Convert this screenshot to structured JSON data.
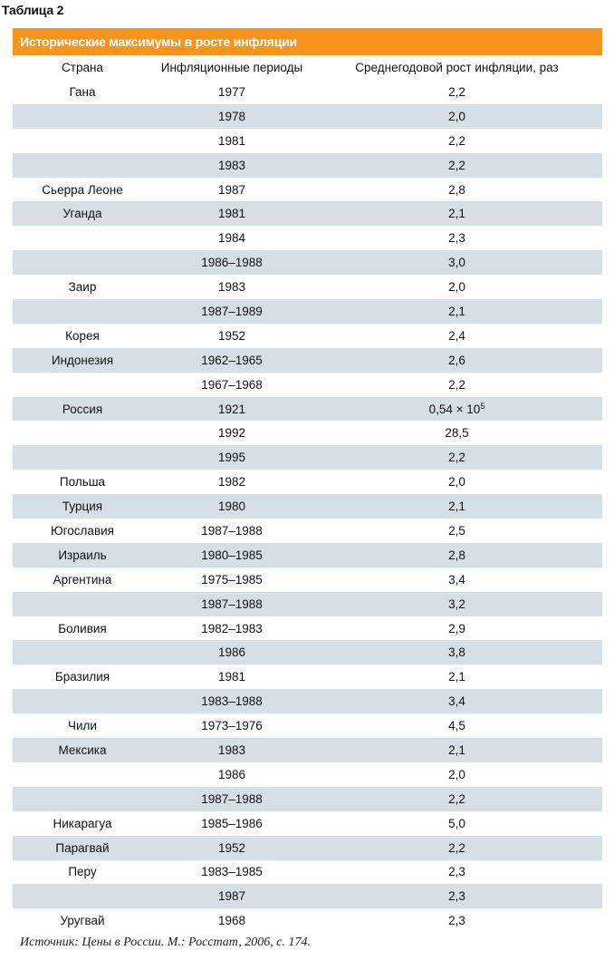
{
  "table_label": "Таблица 2",
  "title": "Исторические максимумы в росте инфляции",
  "headers": [
    "Страна",
    "Инфляционные периоды",
    "Среднегодовой рост инфляции, раз"
  ],
  "rows": [
    {
      "country": "Гана",
      "period": "1977",
      "value": "2,2"
    },
    {
      "country": "",
      "period": "1978",
      "value": "2,0"
    },
    {
      "country": "",
      "period": "1981",
      "value": "2,2"
    },
    {
      "country": "",
      "period": "1983",
      "value": "2,2"
    },
    {
      "country": "Сьерра Леоне",
      "period": "1987",
      "value": "2,8"
    },
    {
      "country": "Уганда",
      "period": "1981",
      "value": "2,1"
    },
    {
      "country": "",
      "period": "1984",
      "value": "2,3"
    },
    {
      "country": "",
      "period": "1986–1988",
      "value": "3,0"
    },
    {
      "country": "Заир",
      "period": "1983",
      "value": "2,0"
    },
    {
      "country": "",
      "period": "1987–1989",
      "value": "2,1"
    },
    {
      "country": "Корея",
      "period": "1952",
      "value": "2,4"
    },
    {
      "country": "Индонезия",
      "period": "1962–1965",
      "value": "2,6"
    },
    {
      "country": "",
      "period": "1967–1968",
      "value": "2,2"
    },
    {
      "country": "Россия",
      "period": "1921",
      "value": "0,54 × 10",
      "sup": "5"
    },
    {
      "country": "",
      "period": "1992",
      "value": "28,5"
    },
    {
      "country": "",
      "period": "1995",
      "value": "2,2"
    },
    {
      "country": "Польша",
      "period": "1982",
      "value": "2,0"
    },
    {
      "country": "Турция",
      "period": "1980",
      "value": "2,1"
    },
    {
      "country": "Югославия",
      "period": "1987–1988",
      "value": "2,5"
    },
    {
      "country": "Израиль",
      "period": "1980–1985",
      "value": "2,8"
    },
    {
      "country": "Аргентина",
      "period": "1975–1985",
      "value": "3,4"
    },
    {
      "country": "",
      "period": "1987–1988",
      "value": "3,2"
    },
    {
      "country": "Боливия",
      "period": "1982–1983",
      "value": "2,9"
    },
    {
      "country": "",
      "period": "1986",
      "value": "3,8"
    },
    {
      "country": "Бразилия",
      "period": "1981",
      "value": "2,1"
    },
    {
      "country": "",
      "period": "1983–1988",
      "value": "3,4"
    },
    {
      "country": "Чили",
      "period": "1973–1976",
      "value": "4,5"
    },
    {
      "country": "Мексика",
      "period": "1983",
      "value": "2,1"
    },
    {
      "country": "",
      "period": "1986",
      "value": "2,0"
    },
    {
      "country": "",
      "period": "1987–1988",
      "value": "2,2"
    },
    {
      "country": "Никарагуа",
      "period": "1985–1986",
      "value": "5,0"
    },
    {
      "country": "Парагвай",
      "period": "1952",
      "value": "2,2"
    },
    {
      "country": "Перу",
      "period": "1983–1985",
      "value": "2,3"
    },
    {
      "country": "",
      "period": "1987",
      "value": "2,3"
    },
    {
      "country": "Уругвай",
      "period": "1968",
      "value": "2,3"
    }
  ],
  "source": "Источник: Цены в России. М.: Росстат, 2006, с. 174."
}
